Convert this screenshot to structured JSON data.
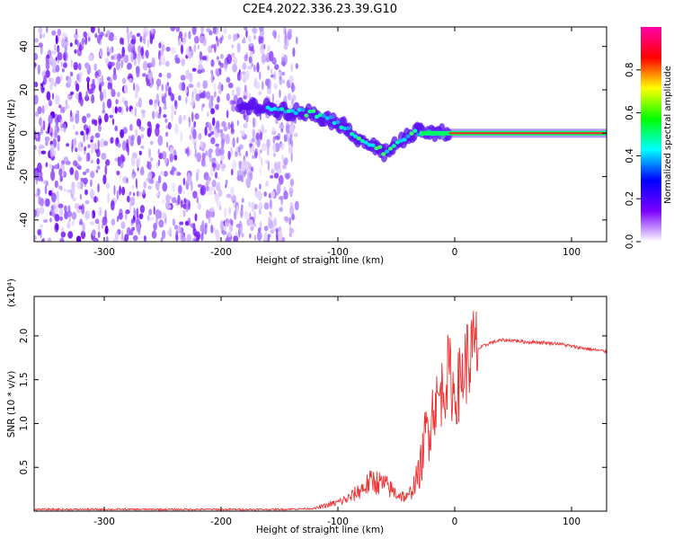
{
  "title": "C2E4.2022.336.23.39.G10",
  "chart_data": [
    {
      "type": "heatmap",
      "title": "C2E4.2022.336.23.39.G10",
      "xlabel": "Height of straight line (km)",
      "ylabel": "Frequency (Hz)",
      "xlim": [
        -360,
        130
      ],
      "ylim": [
        -50,
        49
      ],
      "x_ticks": [
        -300,
        -200,
        -100,
        0,
        100
      ],
      "y_ticks": [
        -40,
        -20,
        0,
        20,
        40
      ],
      "grid": false,
      "colorbar": {
        "label": "Normalized spectral amplitude",
        "range": [
          0.0,
          1.0
        ],
        "ticks": [
          "0.0",
          "0.2",
          "0.4",
          "0.6",
          "0.8"
        ],
        "colormap": [
          "#ffffff",
          "#7a00ff",
          "#0000ff",
          "#00ffff",
          "#00ff00",
          "#ffff00",
          "#ff0000",
          "#ff00aa"
        ]
      },
      "frequency_ridge": {
        "x": [
          -180,
          -160,
          -140,
          -120,
          -100,
          -90,
          -80,
          -70,
          -60,
          -50,
          -40,
          -30,
          -20,
          -10,
          0,
          20,
          60,
          100,
          130
        ],
        "y": [
          12,
          12,
          10,
          9,
          5,
          1,
          -3,
          -6,
          -9,
          -5,
          -2,
          1,
          0,
          0,
          0,
          0,
          0,
          0,
          0
        ]
      },
      "noise_region_x": [
        -360,
        -135
      ]
    },
    {
      "type": "line",
      "xlabel": "Height of straight line (km)",
      "ylabel": "SNR (10 * v/v)",
      "y_scale_note": "(x10⁴)",
      "xlim": [
        -360,
        130
      ],
      "ylim": [
        0,
        2.45
      ],
      "x_ticks": [
        -300,
        -200,
        -100,
        0,
        100
      ],
      "y_ticks": [
        "0.5",
        "1.0",
        "1.5",
        "2.0"
      ],
      "color": "#ee3333",
      "series": [
        {
          "x": [
            -360,
            -300,
            -200,
            -150,
            -120,
            -100,
            -90,
            -80,
            -70,
            -60,
            -50,
            -40,
            -30,
            -25,
            -20,
            -15,
            -10,
            -5,
            0,
            5,
            10,
            15,
            20,
            30,
            40,
            50,
            60,
            70,
            80,
            90,
            100,
            110,
            120,
            130
          ],
          "values": [
            0.02,
            0.02,
            0.02,
            0.02,
            0.03,
            0.1,
            0.15,
            0.25,
            0.35,
            0.3,
            0.2,
            0.15,
            0.45,
            0.85,
            1.15,
            1.25,
            1.4,
            1.6,
            1.3,
            1.5,
            1.7,
            1.8,
            1.85,
            1.92,
            1.95,
            1.95,
            1.93,
            1.93,
            1.92,
            1.91,
            1.88,
            1.86,
            1.84,
            1.82
          ]
        }
      ]
    }
  ]
}
